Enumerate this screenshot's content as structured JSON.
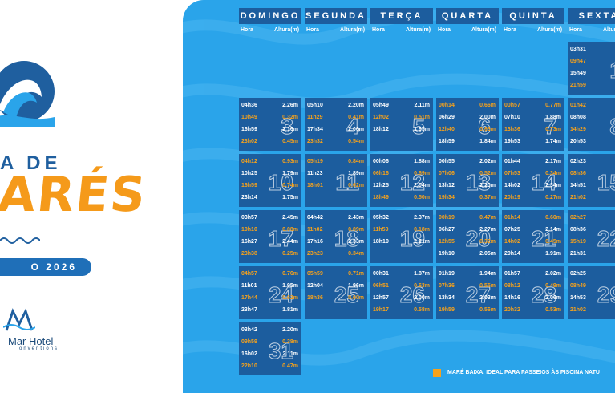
{
  "brand": {
    "title_small": "A DE",
    "title_big": "ARÉS",
    "month_label": "O 2026",
    "hotel_name": "Mar Hotel",
    "hotel_sub": "onventions"
  },
  "headers": {
    "days": [
      "DOMINGO",
      "SEGUNDA",
      "TERÇA",
      "QUARTA",
      "QUINTA",
      "SEXTA"
    ],
    "hora": "Hora",
    "altura": "Altura(m)"
  },
  "legend": {
    "text": "MARÉ BAIXA, IDEAL PARA PASSEIOS ÀS PISCINA NATU",
    "color": "#f7a21b"
  },
  "colors": {
    "cell_bg": "#1c5d9e",
    "low_tide": "#f7a21b",
    "sea": "#2aa4ea"
  },
  "weeks": [
    [
      null,
      null,
      null,
      null,
      null,
      {
        "day": "1",
        "tides": [
          {
            "t": "03h31",
            "h": ""
          },
          {
            "t": "09h47",
            "h": "",
            "low": true
          },
          {
            "t": "15h49",
            "h": ""
          },
          {
            "t": "21h59",
            "h": "",
            "low": true
          }
        ]
      }
    ],
    [
      {
        "day": "3",
        "tides": [
          {
            "t": "04h36",
            "h": "2.26m"
          },
          {
            "t": "10h49",
            "h": "0.32m",
            "low": true
          },
          {
            "t": "16h59",
            "h": "2.16m"
          },
          {
            "t": "23h02",
            "h": "0.45m",
            "low": true
          }
        ]
      },
      {
        "day": "4",
        "tides": [
          {
            "t": "05h10",
            "h": "2.20m"
          },
          {
            "t": "11h29",
            "h": "0.41m",
            "low": true
          },
          {
            "t": "17h34",
            "h": "2.06m"
          },
          {
            "t": "23h32",
            "h": "0.54m",
            "low": true
          }
        ]
      },
      {
        "day": "5",
        "tides": [
          {
            "t": "05h49",
            "h": "2.11m"
          },
          {
            "t": "12h02",
            "h": "0.51m",
            "low": true
          },
          {
            "t": "18h12",
            "h": "1.95m"
          },
          {
            "t": "",
            "h": ""
          }
        ]
      },
      {
        "day": "6",
        "tides": [
          {
            "t": "00h14",
            "h": "0.66m",
            "low": true
          },
          {
            "t": "06h29",
            "h": "2.00m"
          },
          {
            "t": "12h40",
            "h": "0.63m",
            "low": true
          },
          {
            "t": "18h59",
            "h": "1.84m"
          }
        ]
      },
      {
        "day": "7",
        "tides": [
          {
            "t": "00h57",
            "h": "0.77m",
            "low": true
          },
          {
            "t": "07h10",
            "h": "1.88m"
          },
          {
            "t": "13h36",
            "h": "0.73m",
            "low": true
          },
          {
            "t": "19h53",
            "h": "1.74m"
          }
        ]
      },
      {
        "day": "8",
        "tides": [
          {
            "t": "01h42",
            "h": "",
            "low": true
          },
          {
            "t": "08h08",
            "h": ""
          },
          {
            "t": "14h29",
            "h": "",
            "low": true
          },
          {
            "t": "20h53",
            "h": ""
          }
        ]
      }
    ],
    [
      {
        "day": "10",
        "tides": [
          {
            "t": "04h12",
            "h": "0.93m",
            "low": true
          },
          {
            "t": "10h25",
            "h": "1.79m"
          },
          {
            "t": "16h59",
            "h": "0.74m",
            "low": true
          },
          {
            "t": "23h14",
            "h": "1.75m"
          }
        ]
      },
      {
        "day": "11",
        "tides": [
          {
            "t": "05h19",
            "h": "0.84m",
            "low": true
          },
          {
            "t": "11h23",
            "h": "1.89m"
          },
          {
            "t": "18h01",
            "h": "0.62m",
            "low": true
          },
          {
            "t": "",
            "h": ""
          }
        ]
      },
      {
        "day": "12",
        "tides": [
          {
            "t": "00h06",
            "h": "1.88m"
          },
          {
            "t": "06h16",
            "h": "0.69m",
            "low": true
          },
          {
            "t": "12h25",
            "h": "2.04m"
          },
          {
            "t": "18h49",
            "h": "0.50m",
            "low": true
          }
        ]
      },
      {
        "day": "13",
        "tides": [
          {
            "t": "00h55",
            "h": "2.02m"
          },
          {
            "t": "07h06",
            "h": "0.52m",
            "low": true
          },
          {
            "t": "13h12",
            "h": "2.20m"
          },
          {
            "t": "19h34",
            "h": "0.37m",
            "low": true
          }
        ]
      },
      {
        "day": "14",
        "tides": [
          {
            "t": "01h44",
            "h": "2.17m"
          },
          {
            "t": "07h53",
            "h": "0.34m",
            "low": true
          },
          {
            "t": "14h02",
            "h": "2.34m"
          },
          {
            "t": "20h19",
            "h": "0.27m",
            "low": true
          }
        ]
      },
      {
        "day": "15",
        "tides": [
          {
            "t": "02h23",
            "h": ""
          },
          {
            "t": "08h36",
            "h": "",
            "low": true
          },
          {
            "t": "14h51",
            "h": ""
          },
          {
            "t": "21h02",
            "h": "",
            "low": true
          }
        ]
      }
    ],
    [
      {
        "day": "17",
        "tides": [
          {
            "t": "03h57",
            "h": "2.45m"
          },
          {
            "t": "10h10",
            "h": "0.08m",
            "low": true
          },
          {
            "t": "16h27",
            "h": "2.44m"
          },
          {
            "t": "23h38",
            "h": "0.25m",
            "low": true
          }
        ]
      },
      {
        "day": "18",
        "tides": [
          {
            "t": "04h42",
            "h": "2.43m"
          },
          {
            "t": "11h02",
            "h": "0.09m",
            "low": true
          },
          {
            "t": "17h16",
            "h": "2.33m"
          },
          {
            "t": "23h23",
            "h": "0.34m",
            "low": true
          }
        ]
      },
      {
        "day": "19",
        "tides": [
          {
            "t": "05h32",
            "h": "2.37m"
          },
          {
            "t": "11h59",
            "h": "0.18m",
            "low": true
          },
          {
            "t": "18h10",
            "h": "2.21m"
          },
          {
            "t": "",
            "h": ""
          }
        ]
      },
      {
        "day": "20",
        "tides": [
          {
            "t": "00h19",
            "h": "0.47m",
            "low": true
          },
          {
            "t": "06h27",
            "h": "2.27m"
          },
          {
            "t": "12h55",
            "h": "0.32m",
            "low": true
          },
          {
            "t": "19h10",
            "h": "2.05m"
          }
        ]
      },
      {
        "day": "21",
        "tides": [
          {
            "t": "01h14",
            "h": "0.60m",
            "low": true
          },
          {
            "t": "07h25",
            "h": "2.14m"
          },
          {
            "t": "14h02",
            "h": "0.45m",
            "low": true
          },
          {
            "t": "20h14",
            "h": "1.91m"
          }
        ]
      },
      {
        "day": "22",
        "tides": [
          {
            "t": "02h27",
            "h": "",
            "low": true
          },
          {
            "t": "08h36",
            "h": ""
          },
          {
            "t": "15h19",
            "h": "",
            "low": true
          },
          {
            "t": "21h31",
            "h": ""
          }
        ]
      }
    ],
    [
      {
        "day": "24",
        "tides": [
          {
            "t": "04h57",
            "h": "0.76m",
            "low": true
          },
          {
            "t": "11h01",
            "h": "1.95m"
          },
          {
            "t": "17h44",
            "h": "0.62m",
            "low": true
          },
          {
            "t": "23h47",
            "h": "1.81m"
          }
        ]
      },
      {
        "day": "25",
        "tides": [
          {
            "t": "05h59",
            "h": "0.71m",
            "low": true
          },
          {
            "t": "12h04",
            "h": "1.96m"
          },
          {
            "t": "18h36",
            "h": "0.60m",
            "low": true
          },
          {
            "t": "",
            "h": ""
          }
        ]
      },
      {
        "day": "26",
        "tides": [
          {
            "t": "00h31",
            "h": "1.87m"
          },
          {
            "t": "06h51",
            "h": "0.63m",
            "low": true
          },
          {
            "t": "12h57",
            "h": "2.00m"
          },
          {
            "t": "19h17",
            "h": "0.58m",
            "low": true
          }
        ]
      },
      {
        "day": "27",
        "tides": [
          {
            "t": "01h19",
            "h": "1.94m"
          },
          {
            "t": "07h36",
            "h": "0.55m",
            "low": true
          },
          {
            "t": "13h34",
            "h": "2.03m"
          },
          {
            "t": "19h59",
            "h": "0.56m",
            "low": true
          }
        ]
      },
      {
        "day": "28",
        "tides": [
          {
            "t": "01h57",
            "h": "2.02m"
          },
          {
            "t": "08h12",
            "h": "0.49m",
            "low": true
          },
          {
            "t": "14h16",
            "h": "2.06m"
          },
          {
            "t": "20h32",
            "h": "0.53m",
            "low": true
          }
        ]
      },
      {
        "day": "29",
        "tides": [
          {
            "t": "02h25",
            "h": ""
          },
          {
            "t": "08h49",
            "h": "",
            "low": true
          },
          {
            "t": "14h53",
            "h": ""
          },
          {
            "t": "21h02",
            "h": "",
            "low": true
          }
        ]
      }
    ],
    [
      {
        "day": "31",
        "tides": [
          {
            "t": "03h42",
            "h": "2.20m"
          },
          {
            "t": "09h59",
            "h": "0.38m",
            "low": true
          },
          {
            "t": "16h02",
            "h": "2.11m"
          },
          {
            "t": "22h10",
            "h": "0.47m",
            "low": true
          }
        ]
      },
      null,
      null,
      null,
      null,
      null
    ]
  ]
}
